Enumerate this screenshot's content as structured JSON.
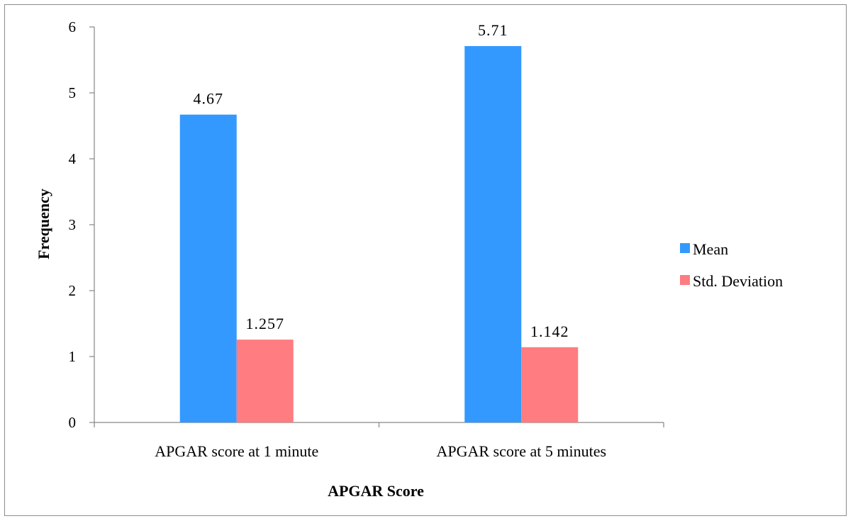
{
  "chart_data": {
    "type": "bar",
    "title": "",
    "xlabel": "APGAR Score",
    "ylabel": "Frequency",
    "ylim": [
      0,
      6
    ],
    "yticks": [
      0,
      1,
      2,
      3,
      4,
      5,
      6
    ],
    "grid": false,
    "legend_position": "right",
    "categories": [
      "APGAR score at 1 minute",
      "APGAR score at 5 minutes"
    ],
    "series": [
      {
        "name": "Mean",
        "color": "#3399ff",
        "values": [
          4.67,
          5.71
        ],
        "labels": [
          "4.67",
          "5.71"
        ]
      },
      {
        "name": "Std. Deviation",
        "color": "#ff7c80",
        "values": [
          1.257,
          1.142
        ],
        "labels": [
          "1.257",
          "1.142"
        ]
      }
    ]
  }
}
